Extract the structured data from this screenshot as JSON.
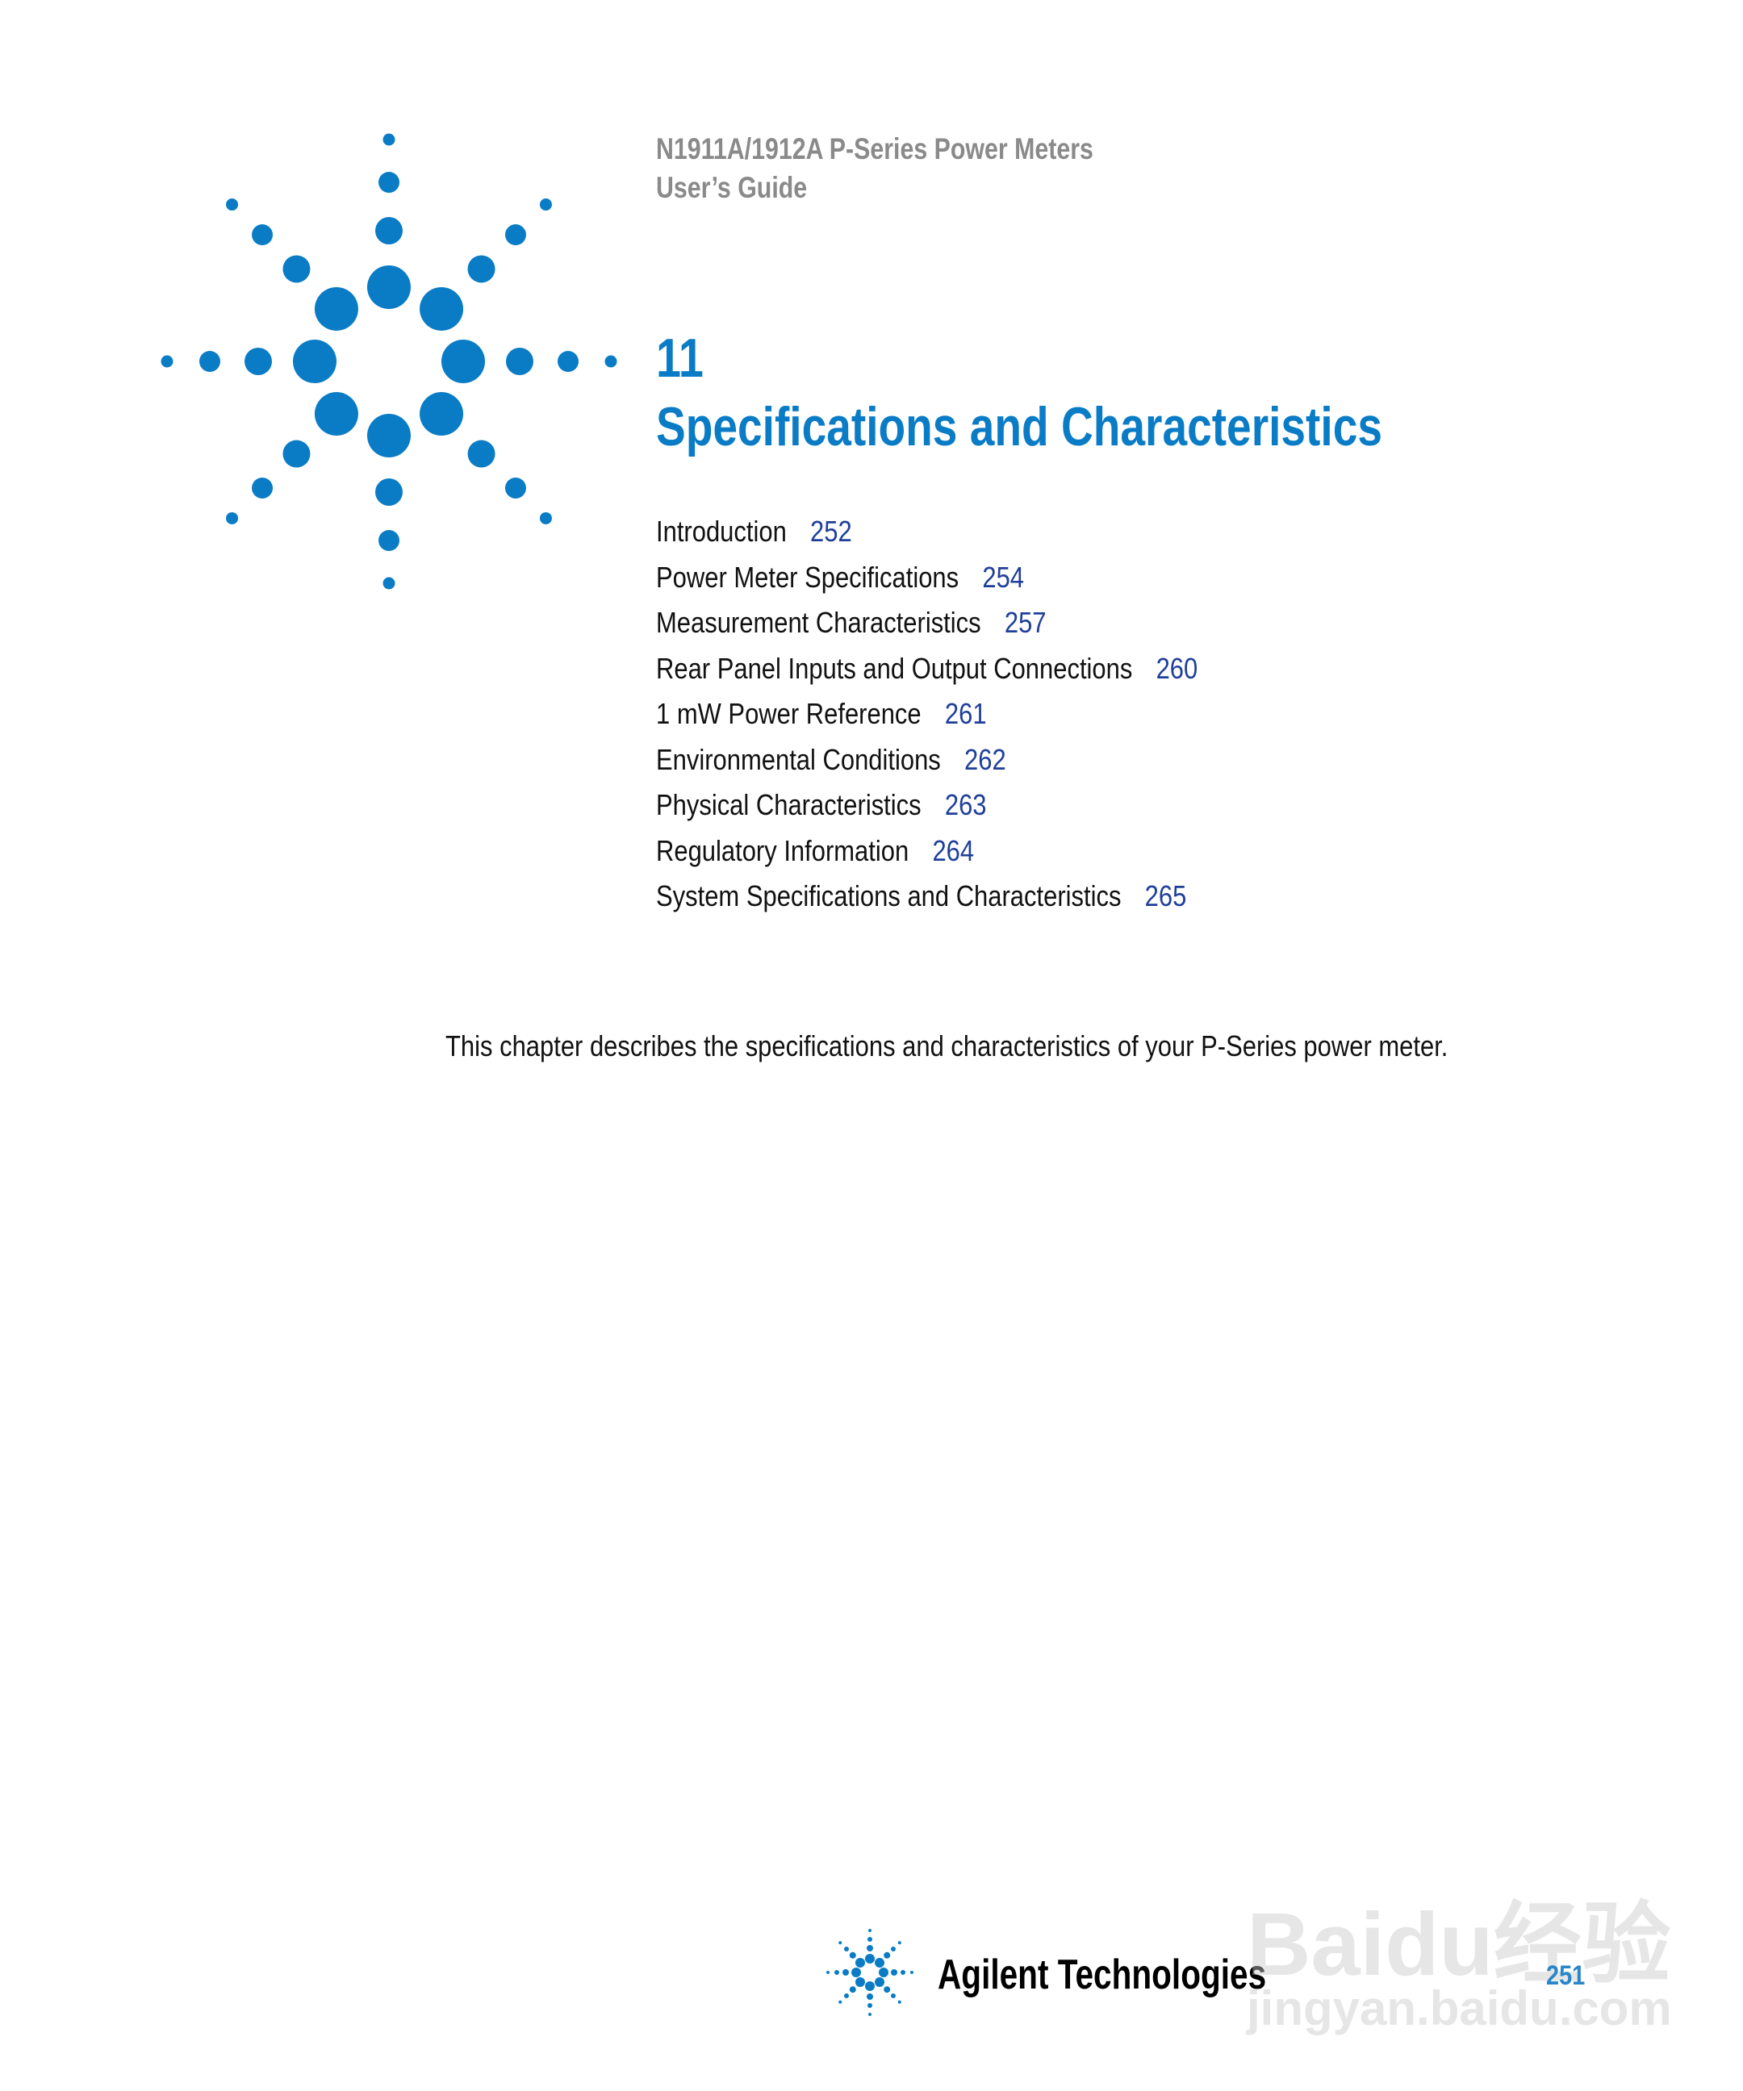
{
  "header": {
    "product": "N1911A/1912A P-Series Power Meters",
    "doc_type": "User’s Guide"
  },
  "chapter": {
    "number": "11",
    "title": "Specifications and Characteristics"
  },
  "toc": [
    {
      "label": "Introduction",
      "page": "252"
    },
    {
      "label": "Power Meter Specifications",
      "page": "254"
    },
    {
      "label": "Measurement Characteristics",
      "page": "257"
    },
    {
      "label": "Rear Panel Inputs and Output Connections",
      "page": "260"
    },
    {
      "label": "1 mW Power Reference",
      "page": "261"
    },
    {
      "label": "Environmental Conditions",
      "page": "262"
    },
    {
      "label": "Physical Characteristics",
      "page": "263"
    },
    {
      "label": "Regulatory Information",
      "page": "264"
    },
    {
      "label": "System Specifications and Characteristics",
      "page": "265"
    }
  ],
  "intro": "This chapter describes the specifications and characteristics of your P-Series power meter.",
  "footer": {
    "brand": "Agilent Technologies",
    "page_number": "251"
  },
  "watermark": {
    "line1": "Baidu经验",
    "line2": "jingyan.baidu.com"
  },
  "colors": {
    "accent": "#0a7cc6",
    "page_link": "#1f3f9a",
    "header_gray": "#8a8a8a"
  },
  "icons": [
    "agilent-spark-logo"
  ]
}
